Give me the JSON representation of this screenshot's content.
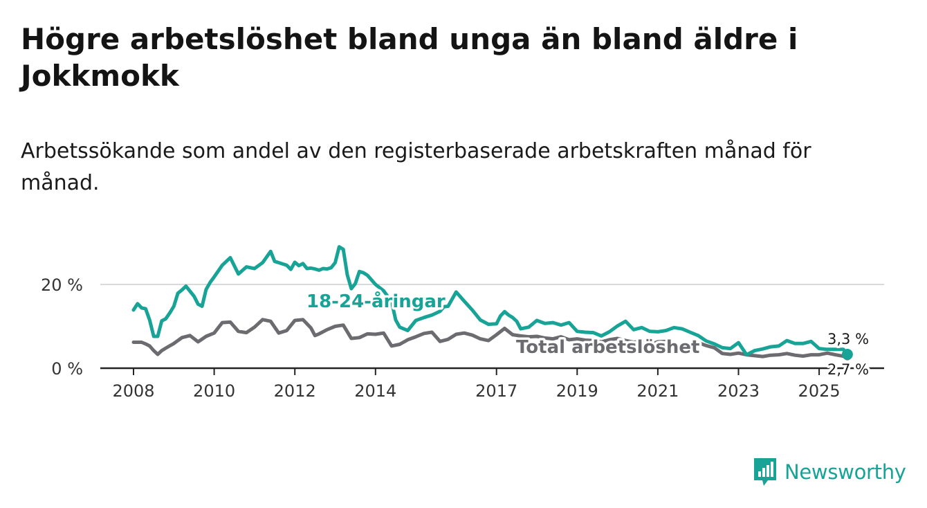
{
  "title": "Högre arbetslöshet bland unga än bland äldre i Jokkmokk",
  "subtitle": "Arbetssökande som andel av den registerbaserade arbetskraften månad för månad.",
  "brand": {
    "name": "Newsworthy",
    "icon": "newsworthy-logo-icon"
  },
  "colors": {
    "youth": "#17a396",
    "total": "#6b6b70",
    "grid": "#d9d9d9",
    "axis": "#222222"
  },
  "chart_data": {
    "type": "line",
    "title": "Högre arbetslöshet bland unga än bland äldre i Jokkmokk",
    "xlabel": "",
    "ylabel": "",
    "xlim": [
      2008,
      2025.8
    ],
    "ylim": [
      0,
      30
    ],
    "x_ticks": [
      2008,
      2010,
      2012,
      2014,
      2017,
      2019,
      2021,
      2023,
      2025
    ],
    "x_tick_labels": [
      "2008",
      "2010",
      "2012",
      "2014",
      "2017",
      "2019",
      "2021",
      "2023",
      "2025"
    ],
    "y_ticks": [
      0,
      20
    ],
    "y_tick_labels": [
      "0 %",
      "20 %"
    ],
    "grid": true,
    "series": [
      {
        "name": "18-24-åringar",
        "label": "18-24-åringar",
        "end_label": "3,3 %",
        "x": [
          2008.0,
          2008.1,
          2008.2,
          2008.3,
          2008.4,
          2008.5,
          2008.6,
          2008.7,
          2008.8,
          2008.9,
          2009.0,
          2009.1,
          2009.2,
          2009.3,
          2009.4,
          2009.5,
          2009.6,
          2009.7,
          2009.8,
          2009.9,
          2010.0,
          2010.2,
          2010.4,
          2010.6,
          2010.8,
          2010.9,
          2011.0,
          2011.2,
          2011.4,
          2011.5,
          2011.6,
          2011.8,
          2011.9,
          2012.0,
          2012.1,
          2012.2,
          2012.3,
          2012.4,
          2012.5,
          2012.6,
          2012.7,
          2012.8,
          2012.9,
          2013.0,
          2013.1,
          2013.2,
          2013.3,
          2013.4,
          2013.5,
          2013.6,
          2013.7,
          2013.8,
          2014.0,
          2014.2,
          2014.4,
          2014.5,
          2014.6,
          2014.8,
          2015.0,
          2015.2,
          2015.4,
          2015.6,
          2015.7,
          2015.8,
          2016.0,
          2016.2,
          2016.4,
          2016.6,
          2016.8,
          2017.0,
          2017.1,
          2017.2,
          2017.3,
          2017.4,
          2017.5,
          2017.6,
          2017.8,
          2018.0,
          2018.2,
          2018.4,
          2018.6,
          2018.8,
          2019.0,
          2019.2,
          2019.4,
          2019.6,
          2019.8,
          2020.0,
          2020.2,
          2020.4,
          2020.6,
          2020.8,
          2021.0,
          2021.2,
          2021.4,
          2021.6,
          2021.8,
          2022.0,
          2022.2,
          2022.4,
          2022.6,
          2022.8,
          2023.0,
          2023.2,
          2023.4,
          2023.6,
          2023.8,
          2024.0,
          2024.2,
          2024.4,
          2024.6,
          2024.8,
          2025.0,
          2025.2,
          2025.4,
          2025.6,
          2025.7
        ],
        "y": [
          13.9,
          15.4,
          14.4,
          14.2,
          11.5,
          7.6,
          7.6,
          11.3,
          11.8,
          13.2,
          14.8,
          17.9,
          18.7,
          19.6,
          18.4,
          17.2,
          15.3,
          14.8,
          18.8,
          20.5,
          21.8,
          24.6,
          26.4,
          22.5,
          24.2,
          24.0,
          23.8,
          25.2,
          27.9,
          25.5,
          25.2,
          24.6,
          23.6,
          25.3,
          24.5,
          25.0,
          23.8,
          23.9,
          23.7,
          23.4,
          23.8,
          23.7,
          24.0,
          25.2,
          29.0,
          28.4,
          22.3,
          19.0,
          20.2,
          23.1,
          22.8,
          22.2,
          20.0,
          18.5,
          15.9,
          11.5,
          9.8,
          9.0,
          11.4,
          12.1,
          12.7,
          13.6,
          14.7,
          14.8,
          18.2,
          16.0,
          13.9,
          11.5,
          10.5,
          10.6,
          12.5,
          13.5,
          12.7,
          12.1,
          11.2,
          9.4,
          9.8,
          11.4,
          10.7,
          10.9,
          10.3,
          10.9,
          8.8,
          8.6,
          8.5,
          7.7,
          8.7,
          10.1,
          11.2,
          9.2,
          9.7,
          8.8,
          8.7,
          9.0,
          9.7,
          9.4,
          8.6,
          7.8,
          6.5,
          5.8,
          4.9,
          4.7,
          6.1,
          3.2,
          4.2,
          4.6,
          5.1,
          5.3,
          6.6,
          5.9,
          5.9,
          6.4,
          4.7,
          4.5,
          4.5,
          4.5,
          3.3
        ]
      },
      {
        "name": "Total arbetslöshet",
        "label": "Total arbetslöshet",
        "end_label": "2,7 %",
        "x": [
          2008.0,
          2008.2,
          2008.3,
          2008.4,
          2008.5,
          2008.6,
          2008.7,
          2008.8,
          2009.0,
          2009.2,
          2009.4,
          2009.6,
          2009.8,
          2010.0,
          2010.2,
          2010.4,
          2010.6,
          2010.8,
          2011.0,
          2011.2,
          2011.4,
          2011.6,
          2011.8,
          2012.0,
          2012.2,
          2012.4,
          2012.5,
          2012.6,
          2012.8,
          2013.0,
          2013.2,
          2013.4,
          2013.6,
          2013.8,
          2014.0,
          2014.2,
          2014.4,
          2014.6,
          2014.8,
          2015.0,
          2015.2,
          2015.4,
          2015.6,
          2015.8,
          2016.0,
          2016.2,
          2016.4,
          2016.6,
          2016.8,
          2017.0,
          2017.2,
          2017.4,
          2017.6,
          2017.8,
          2018.0,
          2018.2,
          2018.4,
          2018.6,
          2018.8,
          2019.0,
          2019.2,
          2019.4,
          2019.6,
          2019.8,
          2020.0,
          2020.2,
          2020.4,
          2020.6,
          2020.8,
          2021.0,
          2021.2,
          2021.4,
          2021.6,
          2021.8,
          2022.0,
          2022.2,
          2022.4,
          2022.6,
          2022.8,
          2023.0,
          2023.2,
          2023.4,
          2023.6,
          2023.8,
          2024.0,
          2024.2,
          2024.4,
          2024.6,
          2024.8,
          2025.0,
          2025.2,
          2025.4,
          2025.7
        ],
        "y": [
          6.2,
          6.2,
          5.8,
          5.3,
          4.2,
          3.3,
          4.2,
          4.8,
          5.9,
          7.3,
          7.8,
          6.3,
          7.6,
          8.4,
          10.9,
          11.0,
          8.8,
          8.5,
          9.8,
          11.6,
          11.2,
          8.4,
          9.0,
          11.4,
          11.6,
          9.6,
          7.8,
          8.2,
          9.2,
          10.0,
          10.3,
          7.1,
          7.3,
          8.2,
          8.1,
          8.4,
          5.3,
          5.7,
          6.8,
          7.5,
          8.3,
          8.6,
          6.4,
          6.9,
          8.1,
          8.4,
          7.9,
          7.0,
          6.6,
          8.0,
          9.5,
          8.0,
          7.7,
          7.5,
          7.6,
          7.2,
          7.0,
          7.5,
          6.8,
          7.0,
          6.7,
          6.6,
          6.3,
          6.8,
          7.1,
          6.6,
          6.2,
          6.4,
          5.6,
          6.3,
          6.4,
          5.6,
          5.4,
          5.6,
          6.1,
          5.4,
          4.9,
          3.5,
          3.3,
          3.6,
          3.2,
          3.0,
          2.8,
          3.1,
          3.2,
          3.5,
          3.1,
          2.9,
          3.2,
          3.2,
          3.6,
          3.2,
          2.7
        ]
      }
    ]
  }
}
